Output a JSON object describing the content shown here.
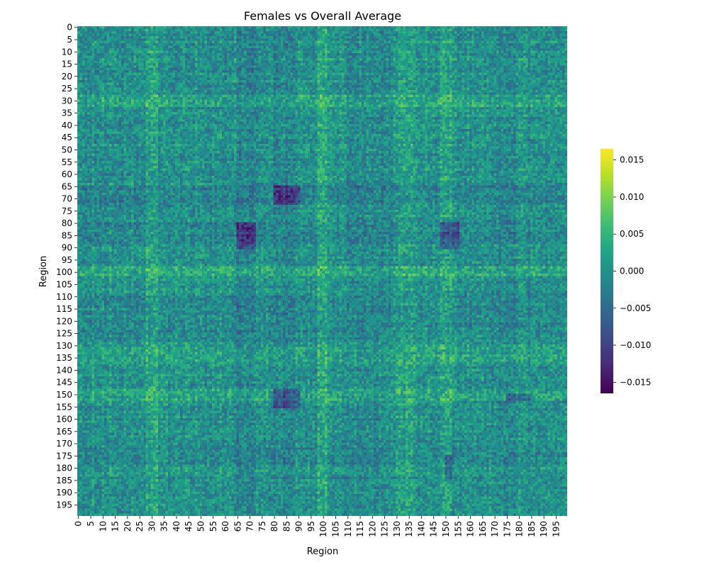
{
  "chart_data": {
    "type": "heatmap",
    "title": "Females vs Overall Average",
    "xlabel": "Region",
    "ylabel": "Region",
    "n_regions": 200,
    "x_ticks": [
      "0",
      "5",
      "10",
      "15",
      "20",
      "25",
      "30",
      "35",
      "40",
      "45",
      "50",
      "55",
      "60",
      "65",
      "70",
      "75",
      "80",
      "85",
      "90",
      "95",
      "100",
      "105",
      "110",
      "115",
      "120",
      "125",
      "130",
      "135",
      "140",
      "145",
      "150",
      "155",
      "160",
      "165",
      "170",
      "175",
      "180",
      "185",
      "190",
      "195"
    ],
    "y_ticks": [
      "0",
      "5",
      "10",
      "15",
      "20",
      "25",
      "30",
      "35",
      "40",
      "45",
      "50",
      "55",
      "60",
      "65",
      "70",
      "75",
      "80",
      "85",
      "90",
      "95",
      "100",
      "105",
      "110",
      "115",
      "120",
      "125",
      "130",
      "135",
      "140",
      "145",
      "150",
      "155",
      "160",
      "165",
      "170",
      "175",
      "180",
      "185",
      "190",
      "195"
    ],
    "colormap": "viridis",
    "colorbar": {
      "vmin": -0.0165,
      "vmax": 0.0165,
      "ticks": [
        -0.015,
        -0.01,
        -0.005,
        0.0,
        0.005,
        0.01,
        0.015
      ],
      "tick_labels": [
        "−0.015",
        "−0.010",
        "−0.005",
        "0.000",
        "0.005",
        "0.010",
        "0.015"
      ]
    },
    "notes_values": "200x200 matrix of signed differences, dense mottled pattern centered near 0; block structure visible (positive bands near regions 30, 100, 130-135, 150; negative bands near 70-90, 150, 175)"
  }
}
